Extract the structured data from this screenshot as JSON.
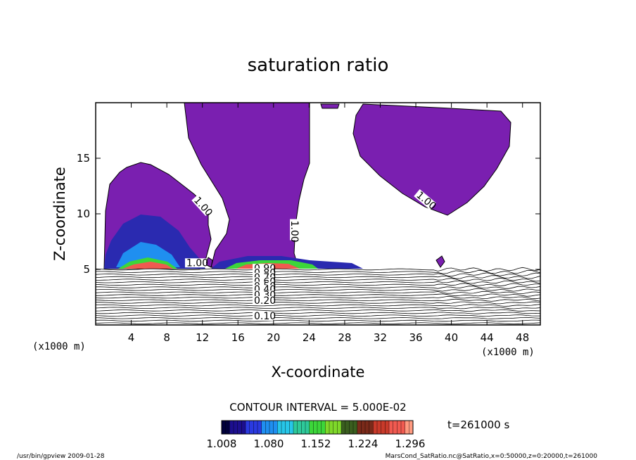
{
  "chart_data": {
    "type": "heatmap",
    "title": "saturation ratio",
    "xlabel": "X-coordinate",
    "ylabel": "Z-coordinate",
    "x_unit": "(x1000 m)",
    "z_unit": "(x1000 m)",
    "xlim": [
      0,
      50
    ],
    "ylim": [
      0,
      20
    ],
    "xticks": [
      4,
      8,
      12,
      16,
      20,
      24,
      28,
      32,
      36,
      40,
      44,
      48
    ],
    "yticks": [
      5,
      10,
      15
    ],
    "contour_interval_text": "CONTOUR INTERVAL = 5.000E-02",
    "time_text": "t=261000 s",
    "colorbar_labels": [
      "1.008",
      "1.080",
      "1.152",
      "1.224",
      "1.296"
    ],
    "colorbar_range": [
      1.008,
      1.296
    ],
    "colors": [
      "#00003a",
      "#1c0f8f",
      "#2a3ae0",
      "#1f8ff0",
      "#27c6e8",
      "#2ec99a",
      "#3cd63a",
      "#7fd82a",
      "#3a5e1f",
      "#7a2a1a",
      "#c83a2a",
      "#f05a50",
      "#ff9a80"
    ],
    "cloud_color": "#7a1fb0",
    "contour_labels": [
      {
        "text": "1.00",
        "x": 11.0,
        "y": 11.2,
        "rot": 48
      },
      {
        "text": "1.00",
        "x": 22.0,
        "y": 9.4,
        "rot": 90
      },
      {
        "text": "1.00",
        "x": 36.0,
        "y": 11.6,
        "rot": 40
      },
      {
        "text": "1.00",
        "x": 10.2,
        "y": 5.3,
        "rot": 0
      },
      {
        "text": "0.90",
        "x": 17.8,
        "y": 4.8,
        "rot": 0
      },
      {
        "text": "0.80",
        "x": 17.8,
        "y": 4.4,
        "rot": 0
      },
      {
        "text": "0.70",
        "x": 17.8,
        "y": 4.0,
        "rot": 0
      },
      {
        "text": "0.60",
        "x": 17.8,
        "y": 3.6,
        "rot": 0
      },
      {
        "text": "0.50",
        "x": 17.8,
        "y": 3.2,
        "rot": 0
      },
      {
        "text": "0.40",
        "x": 17.8,
        "y": 2.9,
        "rot": 0
      },
      {
        "text": "0.30",
        "x": 17.8,
        "y": 2.4,
        "rot": 0
      },
      {
        "text": "0.20",
        "x": 17.8,
        "y": 1.9,
        "rot": 0
      },
      {
        "text": "0.10",
        "x": 17.8,
        "y": 0.5,
        "rot": 0
      }
    ]
  },
  "footer": {
    "left": "/usr/bin/gpview  2009-01-28",
    "right": "MarsCond_SatRatio.nc@SatRatio,x=0:50000,z=0:20000,t=261000"
  }
}
